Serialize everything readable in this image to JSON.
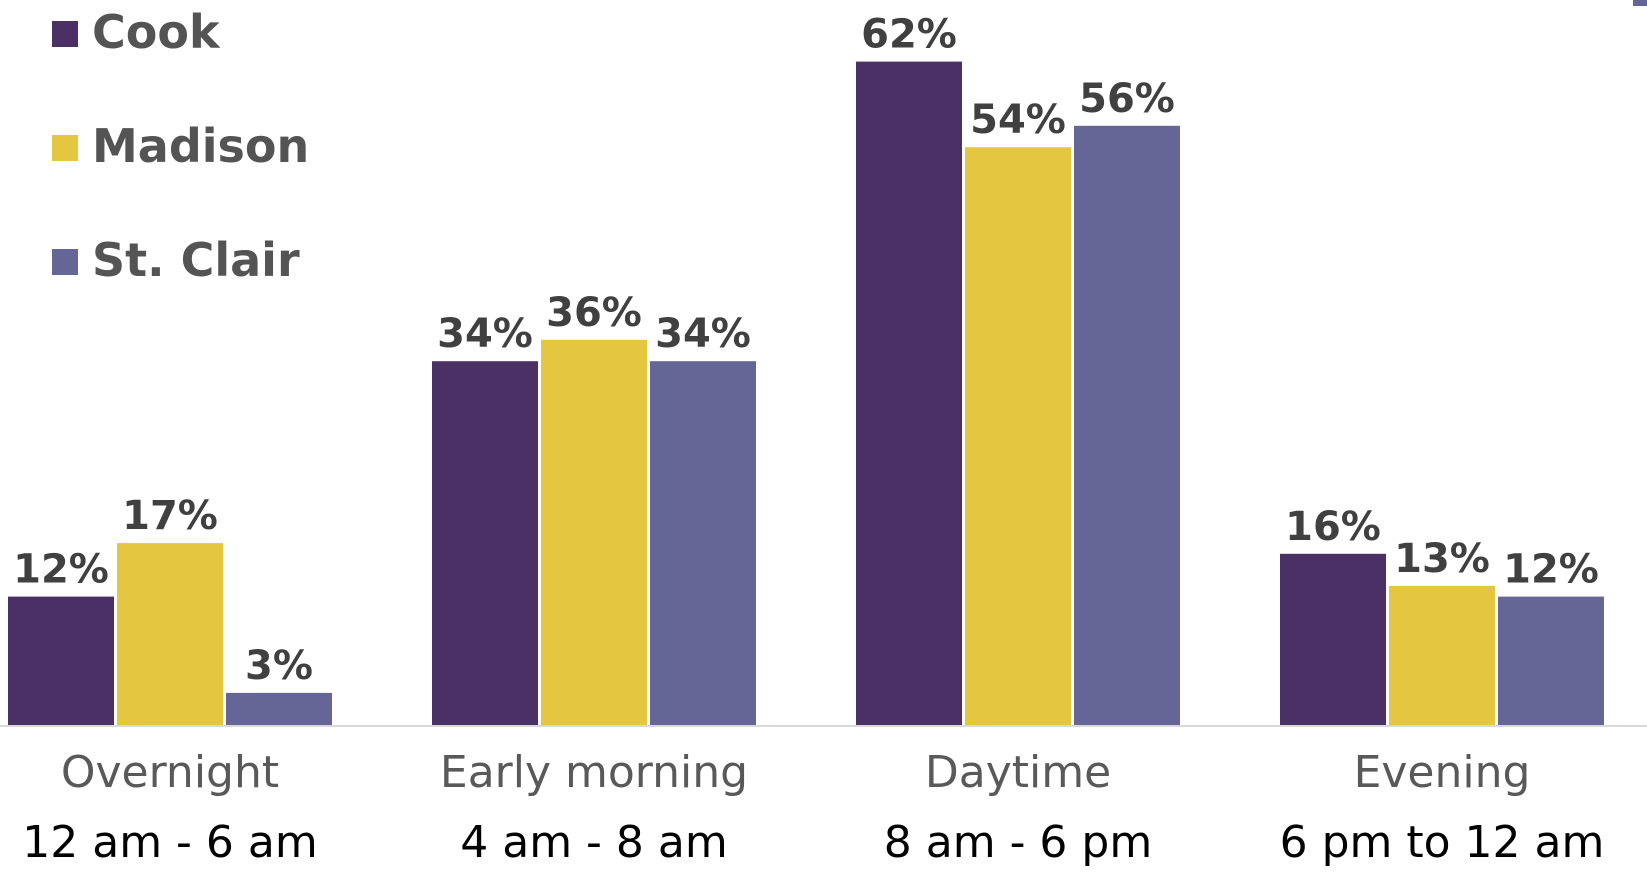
{
  "chart_data": {
    "type": "bar",
    "categories": [
      "Overnight",
      "Early morning",
      "Daytime",
      "Evening"
    ],
    "subcategories": [
      "12 am - 6 am",
      "4 am - 8 am",
      "8 am - 6 pm",
      "6 pm to 12 am"
    ],
    "series": [
      {
        "name": "Cook",
        "color": "#4A3065",
        "values": [
          12,
          34,
          62,
          16
        ],
        "labels": [
          "12%",
          "34%",
          "62%",
          "16%"
        ]
      },
      {
        "name": "Madison",
        "color": "#E4C640",
        "values": [
          17,
          36,
          54,
          13
        ],
        "labels": [
          "17%",
          "36%",
          "54%",
          "13%"
        ]
      },
      {
        "name": "St. Clair",
        "color": "#666696",
        "values": [
          3,
          34,
          56,
          12
        ],
        "labels": [
          "3%",
          "34%",
          "56%",
          "12%"
        ]
      }
    ],
    "unit": "%",
    "ylim": [
      0,
      62
    ],
    "grid": false,
    "legend_position": "top-left",
    "baseline_color": "#D9D9D9",
    "category_label_color": "#595959",
    "subcategory_label_color": "#000000",
    "data_label_color": "#404040"
  }
}
